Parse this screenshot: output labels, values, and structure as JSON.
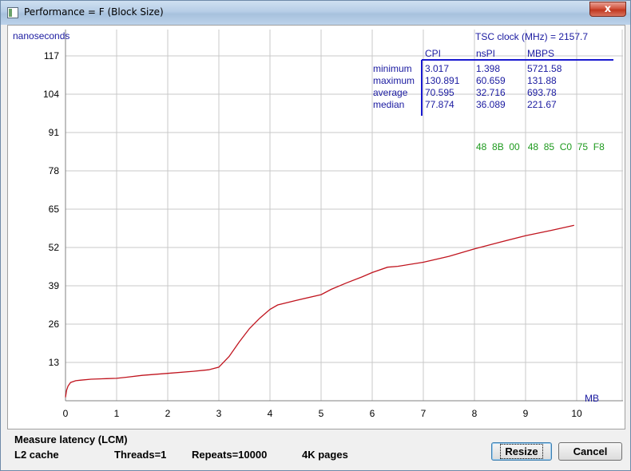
{
  "window": {
    "title": "Performance = F (Block Size)",
    "close_glyph": "x"
  },
  "chart_data": {
    "type": "line",
    "ylabel": "nanoseconds",
    "xlabel": "MB",
    "xlim": [
      0,
      10.7
    ],
    "ylim": [
      0,
      117
    ],
    "x_ticks": [
      0,
      1,
      2,
      3,
      4,
      5,
      6,
      7,
      8,
      9,
      10
    ],
    "y_ticks": [
      13,
      26,
      39,
      52,
      65,
      78,
      91,
      104,
      117
    ],
    "grid": true,
    "series": [
      {
        "color": "#c0141e",
        "points": [
          [
            0.0,
            1.2
          ],
          [
            0.02,
            3.5
          ],
          [
            0.05,
            5.0
          ],
          [
            0.1,
            6.2
          ],
          [
            0.2,
            6.8
          ],
          [
            0.3,
            7.0
          ],
          [
            0.5,
            7.3
          ],
          [
            0.8,
            7.5
          ],
          [
            1.0,
            7.6
          ],
          [
            1.2,
            8.0
          ],
          [
            1.5,
            8.6
          ],
          [
            2.0,
            9.3
          ],
          [
            2.5,
            10.0
          ],
          [
            2.8,
            10.5
          ],
          [
            3.0,
            11.4
          ],
          [
            3.2,
            15.0
          ],
          [
            3.4,
            20.0
          ],
          [
            3.6,
            24.5
          ],
          [
            3.8,
            28.0
          ],
          [
            4.0,
            31.0
          ],
          [
            4.15,
            32.5
          ],
          [
            4.5,
            34.0
          ],
          [
            5.0,
            36.0
          ],
          [
            5.2,
            37.8
          ],
          [
            5.5,
            40.0
          ],
          [
            5.8,
            42.0
          ],
          [
            6.0,
            43.5
          ],
          [
            6.3,
            45.3
          ],
          [
            6.5,
            45.6
          ],
          [
            7.0,
            47.0
          ],
          [
            7.5,
            49.0
          ],
          [
            8.0,
            51.5
          ],
          [
            8.5,
            53.8
          ],
          [
            9.0,
            56.0
          ],
          [
            9.5,
            57.8
          ],
          [
            9.95,
            59.5
          ]
        ]
      }
    ],
    "stats_table": {
      "tsc_label": "TSC clock (MHz)  = 2157.7",
      "columns": [
        "CPI",
        "nsPI",
        "MBPS"
      ],
      "rows": [
        {
          "label": "minimum",
          "values": [
            "3.017",
            "1.398",
            "5721.58"
          ]
        },
        {
          "label": "maximum",
          "values": [
            "130.891",
            "60.659",
            "131.88"
          ]
        },
        {
          "label": "average",
          "values": [
            "70.595",
            "32.716",
            "693.78"
          ]
        },
        {
          "label": "median",
          "values": [
            "77.874",
            "36.089",
            "221.67"
          ]
        }
      ]
    },
    "instruction_bytes": "48  8B  00   48  85  C0  75  F8",
    "colors": {
      "axis_text": "#000000",
      "table_text": "#1a1aa0",
      "hex_text": "#1e9a1e",
      "line": "#c0141e",
      "grid": "#c8c8c8"
    }
  },
  "status": {
    "mode": "Measure latency (LCM)",
    "cache": "L2 cache",
    "threads": "Threads=1",
    "repeats": "Repeats=10000",
    "pages": "4K pages"
  },
  "buttons": {
    "resize": "Resize",
    "cancel": "Cancel"
  }
}
